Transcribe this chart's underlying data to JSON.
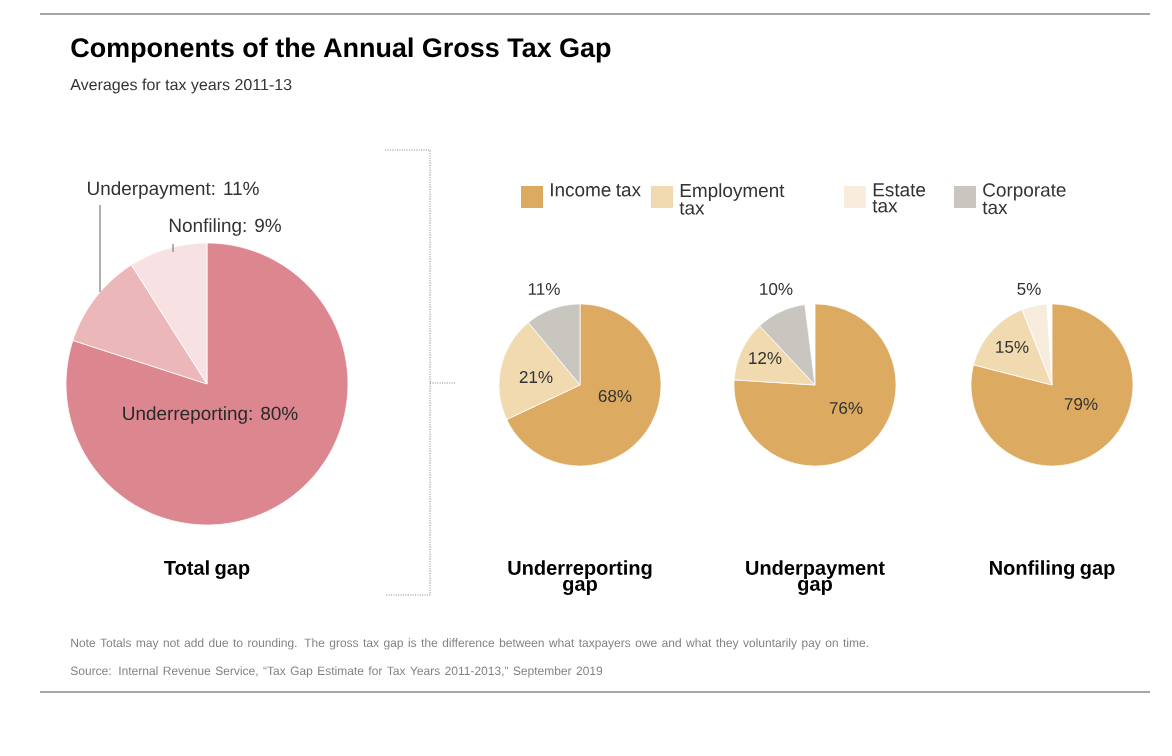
{
  "chart_data": [
    {
      "type": "pie",
      "title": "Components of the Annual Gross Tax Gap",
      "subtitle": "Averages for tax years 2011-13",
      "xlabel": "Total gap",
      "categories": [
        null,
        null,
        null
      ],
      "values": [
        80,
        11,
        9
      ],
      "colors": [
        "#dc878f",
        "#ebb7b9",
        "#f7e1e2"
      ],
      "value_labels": [
        "Underreporting: 80%",
        "Underpayment: 11%",
        "Nonfiling: 9%"
      ],
      "annotations": [
        "Note Totals may not add due to rounding. The gross tax gap is the difference between what taxpayers owe and what they voluntarily pay on time.",
        "Source: Internal Revenue Service, “Tax Gap Estimate for Tax Years 2011-2013,” September 2019"
      ]
    },
    {
      "type": "pie",
      "xlabel": "Underreporting gap",
      "categories": [
        "Income tax",
        "Employment tax",
        "Estate tax",
        "Corporate tax"
      ],
      "values": [
        68,
        21,
        null,
        11
      ],
      "colors": [
        "#dcaa61",
        "#f1d9b0",
        "#f8eddc",
        "#c9c6bf"
      ],
      "value_labels": [
        "68%",
        "21%",
        null,
        "11%"
      ],
      "legend": "top"
    },
    {
      "type": "pie",
      "xlabel": "Underpayment gap",
      "categories": [
        null,
        null,
        null,
        null
      ],
      "values": [
        76,
        12,
        null,
        10
      ],
      "colors": [
        "#dcaa61",
        "#f1d9b0",
        "#f8eddc",
        "#c9c6bf"
      ],
      "value_labels": [
        "76%",
        "12%",
        null,
        "10%"
      ]
    },
    {
      "type": "pie",
      "xlabel": "Nonfiling gap",
      "categories": [
        null,
        null,
        null,
        null
      ],
      "values": [
        79,
        15,
        5,
        null
      ],
      "colors": [
        "#dcaa61",
        "#f1d9b0",
        "#f8eddc",
        "#c9c6bf"
      ],
      "value_labels": [
        "79%",
        "15%",
        "5%",
        null
      ]
    }
  ]
}
